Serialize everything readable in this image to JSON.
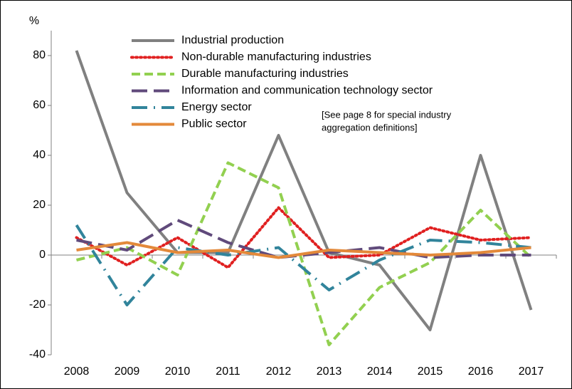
{
  "chart_data": {
    "type": "line",
    "y_label": "%",
    "annotation": [
      "[See page 8 for special industry",
      "aggregation definitions]"
    ],
    "categories": [
      "2008",
      "2009",
      "2010",
      "2011",
      "2012",
      "2013",
      "2014",
      "2015",
      "2016",
      "2017"
    ],
    "series": [
      {
        "name": "Industrial production",
        "color": "#808080",
        "style": "solid",
        "values": [
          82,
          25,
          1,
          1,
          48,
          1,
          -4,
          -30,
          40,
          -22
        ]
      },
      {
        "name": "Non-durable manufacturing industries",
        "color": "#e02020",
        "style": "dotted",
        "values": [
          7,
          -4,
          7,
          -5,
          19,
          -1,
          0,
          11,
          6,
          7
        ]
      },
      {
        "name": "Durable manufacturing industries",
        "color": "#92d050",
        "style": "dashed",
        "values": [
          -2,
          3,
          -8,
          37,
          27,
          -36,
          -13,
          -3,
          18,
          -1
        ]
      },
      {
        "name": "Information and communication technology sector",
        "color": "#604a7b",
        "style": "longdash",
        "values": [
          6,
          2,
          14,
          5,
          -1,
          1,
          3,
          -1,
          0,
          0
        ]
      },
      {
        "name": "Energy sector",
        "color": "#31849b",
        "style": "dashdot",
        "values": [
          12,
          -20,
          3,
          0,
          3,
          -14,
          -2,
          6,
          5,
          3
        ]
      },
      {
        "name": "Public sector",
        "color": "#e3893a",
        "style": "solid",
        "values": [
          2,
          5,
          1,
          2,
          -1,
          2,
          1,
          0,
          1,
          3
        ]
      }
    ],
    "ylim": [
      -40,
      90
    ],
    "yticks": [
      -40,
      -20,
      0,
      20,
      40,
      60,
      80
    ],
    "grid": false,
    "legend": "top-left"
  }
}
